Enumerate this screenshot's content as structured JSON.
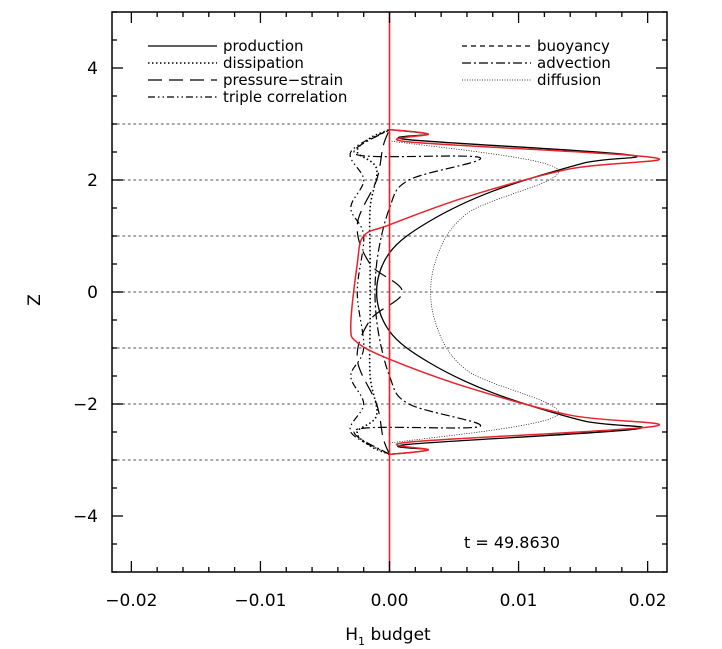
{
  "chart_data": {
    "type": "line",
    "xlabel": "H",
    "xlabel_sub": "1",
    "xlabel_suffix": " budget",
    "ylabel": "Z",
    "xlim": [
      -0.0215,
      0.0215
    ],
    "ylim": [
      -5,
      5
    ],
    "x_ticks": [
      -0.02,
      -0.01,
      0.0,
      0.01,
      0.02
    ],
    "x_tick_labels": [
      "−0.02",
      "−0.01",
      "0.00",
      "0.01",
      "0.02"
    ],
    "y_ticks": [
      -4,
      -2,
      0,
      2,
      4
    ],
    "y_tick_labels": [
      "−4",
      "−2",
      "0",
      "2",
      "4"
    ],
    "hgrid_dotted": [
      -3,
      -2,
      -1,
      0,
      1,
      2,
      3
    ],
    "vline_x": 0.0,
    "annotation": "t  =  49.8630",
    "legend_left": [
      "production",
      "dissipation",
      "pressure−strain",
      "triple correlation"
    ],
    "legend_right": [
      "buoyancy",
      "advection",
      "diffusion"
    ],
    "colors": {
      "sum": "#e8222a",
      "series": "#000000",
      "grid": "#888888"
    },
    "series": [
      {
        "name": "production",
        "style": "solid",
        "points": [
          [
            0.0,
            -2.9
          ],
          [
            0.003,
            -2.82
          ],
          [
            0.0015,
            -2.72
          ],
          [
            0.019,
            -2.45
          ],
          [
            0.015,
            -2.3
          ],
          [
            0.008,
            -1.8
          ],
          [
            0.003,
            -1.25
          ],
          [
            0.0,
            -0.7
          ],
          [
            -0.001,
            0.0
          ],
          [
            0.0,
            0.7
          ],
          [
            0.003,
            1.25
          ],
          [
            0.008,
            1.8
          ],
          [
            0.015,
            2.3
          ],
          [
            0.0185,
            2.45
          ],
          [
            0.0015,
            2.72
          ],
          [
            0.003,
            2.82
          ],
          [
            0.0,
            2.9
          ]
        ]
      },
      {
        "name": "dissipation",
        "style": "dotted",
        "points": [
          [
            0.0,
            -2.9
          ],
          [
            -0.0015,
            -2.75
          ],
          [
            -0.0025,
            -2.5
          ],
          [
            -0.001,
            -2.2
          ],
          [
            -0.0015,
            -1.5
          ],
          [
            -0.0015,
            -0.5
          ],
          [
            -0.0015,
            0.5
          ],
          [
            -0.0015,
            1.5
          ],
          [
            -0.001,
            2.2
          ],
          [
            -0.0025,
            2.5
          ],
          [
            -0.0015,
            2.75
          ],
          [
            0.0,
            2.9
          ]
        ]
      },
      {
        "name": "pressure−strain",
        "style": "longdash",
        "points": [
          [
            0.0,
            -2.9
          ],
          [
            -0.0005,
            -2.6
          ],
          [
            -0.001,
            -2.0
          ],
          [
            -0.0025,
            -1.2
          ],
          [
            -0.0015,
            -0.5
          ],
          [
            0.001,
            0.0
          ],
          [
            -0.0015,
            0.5
          ],
          [
            -0.0025,
            1.2
          ],
          [
            -0.001,
            2.0
          ],
          [
            -0.0005,
            2.6
          ],
          [
            0.0,
            2.9
          ]
        ]
      },
      {
        "name": "triple correlation",
        "style": "dashdotdot",
        "points": [
          [
            0.0,
            -2.9
          ],
          [
            -0.003,
            -2.5
          ],
          [
            -0.002,
            -2.0
          ],
          [
            -0.003,
            -1.5
          ],
          [
            -0.002,
            -1.0
          ],
          [
            -0.0025,
            0.0
          ],
          [
            -0.002,
            1.0
          ],
          [
            -0.003,
            1.5
          ],
          [
            -0.002,
            2.0
          ],
          [
            -0.003,
            2.5
          ],
          [
            0.0,
            2.9
          ]
        ]
      },
      {
        "name": "buoyancy",
        "style": "dashed",
        "points": [
          [
            0.0,
            -2.9
          ],
          [
            0.0,
            2.9
          ]
        ]
      },
      {
        "name": "advection",
        "style": "dashdot",
        "points": [
          [
            0.0,
            -2.9
          ],
          [
            -0.0025,
            -2.45
          ],
          [
            0.007,
            -2.4
          ],
          [
            0.0015,
            -2.0
          ],
          [
            0.0,
            -1.5
          ],
          [
            -0.001,
            -0.5
          ],
          [
            -0.001,
            0.5
          ],
          [
            0.0,
            1.5
          ],
          [
            0.0015,
            2.0
          ],
          [
            0.007,
            2.4
          ],
          [
            -0.0025,
            2.45
          ],
          [
            0.0,
            2.9
          ]
        ]
      },
      {
        "name": "diffusion",
        "style": "thin",
        "points": [
          [
            0.0,
            -2.7
          ],
          [
            0.013,
            -2.2
          ],
          [
            0.006,
            -1.4
          ],
          [
            0.0035,
            -0.5
          ],
          [
            0.0035,
            0.5
          ],
          [
            0.006,
            1.4
          ],
          [
            0.013,
            2.2
          ],
          [
            0.0,
            2.7
          ]
        ]
      },
      {
        "name": "sum",
        "style": "red",
        "points": [
          [
            0.0,
            -2.9
          ],
          [
            0.003,
            -2.82
          ],
          [
            0.0015,
            -2.68
          ],
          [
            0.0205,
            -2.4
          ],
          [
            0.014,
            -2.2
          ],
          [
            0.006,
            -1.7
          ],
          [
            0.0,
            -1.2
          ],
          [
            -0.0025,
            -0.9
          ],
          [
            -0.003,
            -0.6
          ],
          [
            -0.0025,
            0.5
          ],
          [
            -0.002,
            1.0
          ],
          [
            0.0,
            1.2
          ],
          [
            0.006,
            1.7
          ],
          [
            0.014,
            2.2
          ],
          [
            0.0205,
            2.4
          ],
          [
            0.0015,
            2.68
          ],
          [
            0.003,
            2.82
          ],
          [
            0.0,
            2.9
          ]
        ]
      }
    ]
  }
}
